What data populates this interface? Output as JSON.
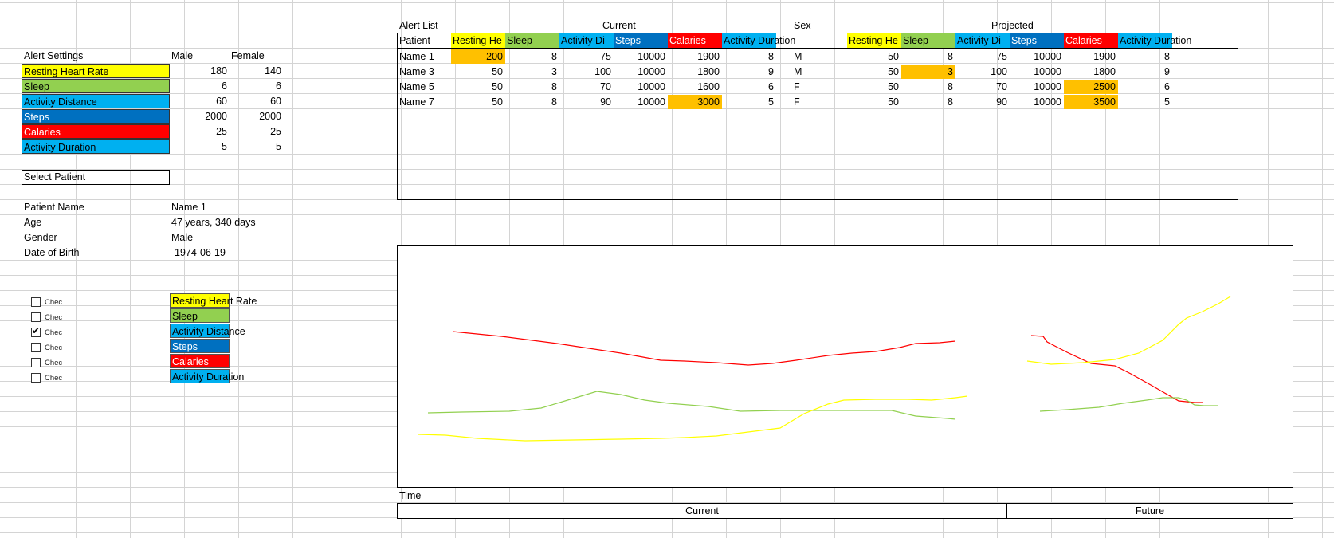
{
  "colors": {
    "resting_heart_rate": "#ffff00",
    "sleep": "#92d050",
    "activity_distance": "#00b0f0",
    "steps": "#0070c0",
    "calories": "#ff0000",
    "activity_duration": "#00b0f0",
    "alert_highlight": "#ffc000"
  },
  "settings": {
    "title": "Alert Settings",
    "male_header": "Male",
    "female_header": "Female",
    "rows": [
      {
        "label": "Resting Heart Rate",
        "male": "180",
        "female": "140"
      },
      {
        "label": "Sleep",
        "male": "6",
        "female": "6"
      },
      {
        "label": "Activity Distance",
        "male": "60",
        "female": "60"
      },
      {
        "label": "Steps",
        "male": "2000",
        "female": "2000"
      },
      {
        "label": "Calaries",
        "male": "25",
        "female": "25"
      },
      {
        "label": "Activity Duration",
        "male": "5",
        "female": "5"
      }
    ]
  },
  "select_patient": {
    "label": "Select Patient"
  },
  "patient": {
    "name_label": "Patient Name",
    "name_value": "Name 1",
    "age_label": "Age",
    "age_value": "47 years, 340 days",
    "gender_label": "Gender",
    "gender_value": "Male",
    "dob_label": "Date of Birth",
    "dob_value": "1974-06-19"
  },
  "checkboxes": [
    {
      "label": "Chec",
      "checked": false,
      "metric": "Resting Heart Rate"
    },
    {
      "label": "Chec",
      "checked": false,
      "metric": "Sleep"
    },
    {
      "label": "Chec",
      "checked": true,
      "metric": "Activity Distance"
    },
    {
      "label": "Chec",
      "checked": false,
      "metric": "Steps"
    },
    {
      "label": "Chec",
      "checked": false,
      "metric": "Calaries"
    },
    {
      "label": "Chec",
      "checked": false,
      "metric": "Activity Duration"
    }
  ],
  "alert_list": {
    "title": "Alert List",
    "current_label": "Current",
    "sex_label": "Sex",
    "projected_label": "Projected",
    "patient_header": "Patient",
    "metric_headers": [
      "Resting He",
      "Sleep",
      "Activity Di",
      "Steps",
      "Calaries",
      "Activity Duration"
    ],
    "rows": [
      {
        "patient": "Name 1",
        "current": [
          "200",
          "8",
          "75",
          "10000",
          "1900",
          "8"
        ],
        "sex": "M",
        "projected": [
          "50",
          "8",
          "75",
          "10000",
          "1900",
          "8"
        ]
      },
      {
        "patient": "Name 3",
        "current": [
          "50",
          "3",
          "100",
          "10000",
          "1800",
          "9"
        ],
        "sex": "M",
        "projected": [
          "50",
          "3",
          "100",
          "10000",
          "1800",
          "9"
        ]
      },
      {
        "patient": "Name 5",
        "current": [
          "50",
          "8",
          "70",
          "10000",
          "1600",
          "6"
        ],
        "sex": "F",
        "projected": [
          "50",
          "8",
          "70",
          "10000",
          "2500",
          "6"
        ]
      },
      {
        "patient": "Name 7",
        "current": [
          "50",
          "8",
          "90",
          "10000",
          "3000",
          "5"
        ],
        "sex": "F",
        "projected": [
          "50",
          "8",
          "90",
          "10000",
          "3500",
          "5"
        ]
      }
    ],
    "highlight_current": [
      [
        0,
        0
      ],
      [
        3,
        4
      ]
    ],
    "highlight_projected": [
      [
        1,
        1
      ],
      [
        2,
        4
      ],
      [
        3,
        4
      ]
    ]
  },
  "chart": {
    "time_label": "Time",
    "current_label": "Current",
    "future_label": "Future"
  }
}
